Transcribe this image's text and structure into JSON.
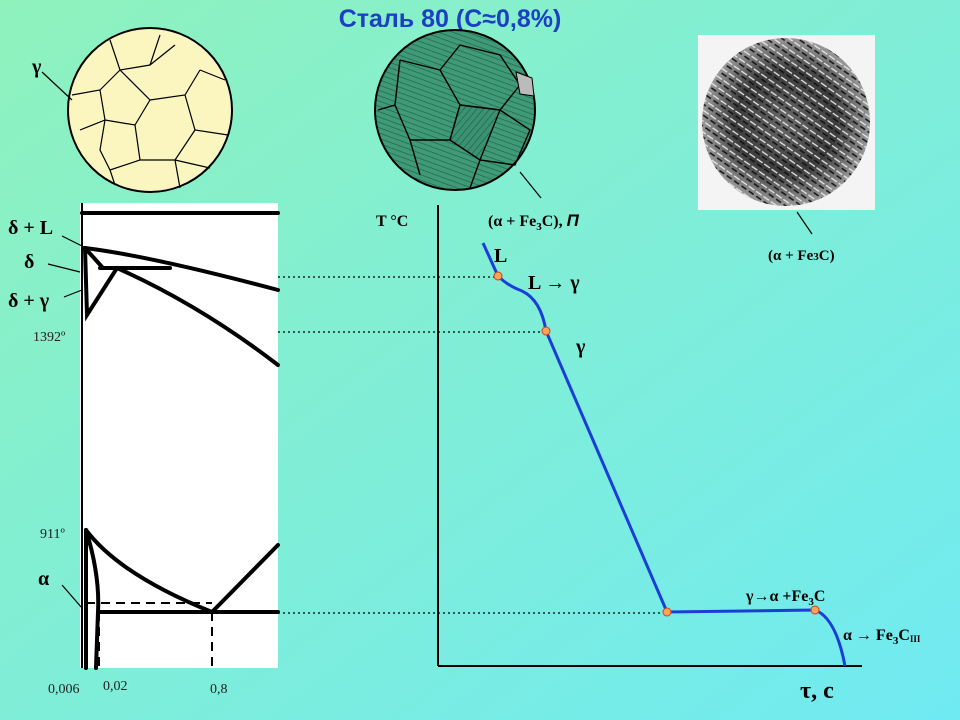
{
  "title": "Сталь 80 (С≈0,8%)",
  "micrographs": {
    "austenite_label": "γ",
    "pearlite_label": {
      "before": "(α + Fe",
      "sub": "3",
      "after": "C), ",
      "phase": "П"
    },
    "photo_label": {
      "before": "(α + Fe",
      "sub": "3",
      "after": "C)"
    }
  },
  "phase_diagram": {
    "region_labels": [
      "δ + L",
      "δ",
      "δ + γ",
      "α"
    ],
    "temperature_labels": [
      "1392º",
      "911º"
    ],
    "carbon_labels": [
      "0,006",
      "0,02",
      "0,8"
    ]
  },
  "cooling_curve": {
    "y_axis_label": "T °C",
    "x_axis_label": "τ, c",
    "stage_labels": [
      "L",
      "L → γ",
      "γ"
    ],
    "eutectoid_label": {
      "before": "γ→α +Fe",
      "sub": "3",
      "after": "C"
    },
    "tertiary_label": {
      "before": "α → Fe",
      "sub": "3",
      "after": "C",
      "sub2": "III"
    }
  }
}
